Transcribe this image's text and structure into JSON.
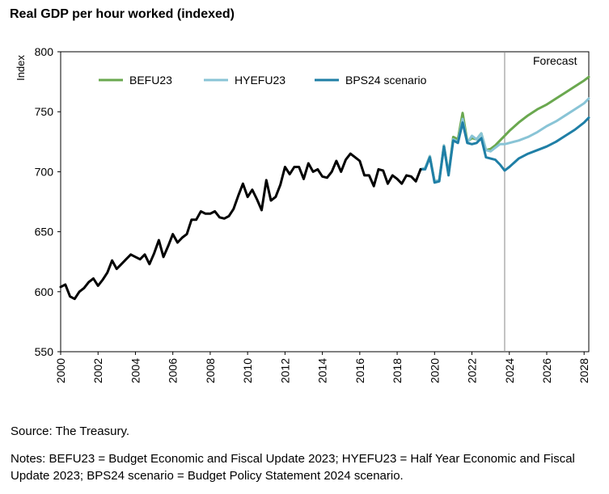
{
  "title": "Real GDP per hour worked (indexed)",
  "source": "Source: The Treasury.",
  "notes": "Notes:  BEFU23 = Budget Economic and Fiscal Update 2023; HYEFU23 = Half Year Economic and Fiscal Update 2023; BPS24 scenario = Budget Policy Statement 2024 scenario.",
  "colors": {
    "history": "#000000",
    "befu": "#6aa84f",
    "hyefu": "#89c4d6",
    "bps": "#1f7fa6",
    "divider": "#888888"
  },
  "chart_data": {
    "type": "line",
    "title": "Real GDP per hour worked (indexed)",
    "ylabel": "Index",
    "xlabel": "",
    "ylim": [
      550,
      800
    ],
    "yticks": [
      550,
      600,
      650,
      700,
      750,
      800
    ],
    "xlim": [
      2000,
      2028.25
    ],
    "xticks": [
      "2000",
      "2002",
      "2004",
      "2006",
      "2008",
      "2010",
      "2012",
      "2014",
      "2016",
      "2018",
      "2020",
      "2022",
      "2024",
      "2026",
      "2028"
    ],
    "forecast_start": 2023.75,
    "forecast_label": "Forecast",
    "legend": [
      "BEFU23",
      "HYEFU23",
      "BPS24 scenario"
    ],
    "history": {
      "x": [
        2000,
        2000.25,
        2000.5,
        2000.75,
        2001,
        2001.25,
        2001.5,
        2001.75,
        2002,
        2002.25,
        2002.5,
        2002.75,
        2003,
        2003.25,
        2003.5,
        2003.75,
        2004,
        2004.25,
        2004.5,
        2004.75,
        2005,
        2005.25,
        2005.5,
        2005.75,
        2006,
        2006.25,
        2006.5,
        2006.75,
        2007,
        2007.25,
        2007.5,
        2007.75,
        2008,
        2008.25,
        2008.5,
        2008.75,
        2009,
        2009.25,
        2009.5,
        2009.75,
        2010,
        2010.25,
        2010.5,
        2010.75,
        2011,
        2011.25,
        2011.5,
        2011.75,
        2012,
        2012.25,
        2012.5,
        2012.75,
        2013,
        2013.25,
        2013.5,
        2013.75,
        2014,
        2014.25,
        2014.5,
        2014.75,
        2015,
        2015.25,
        2015.5,
        2015.75,
        2016,
        2016.25,
        2016.5,
        2016.75,
        2017,
        2017.25,
        2017.5,
        2017.75,
        2018,
        2018.25,
        2018.5,
        2018.75,
        2019,
        2019.25
      ],
      "values": [
        604,
        606,
        596,
        594,
        600,
        603,
        608,
        611,
        605,
        610,
        616,
        626,
        619,
        623,
        627,
        631,
        629,
        627,
        631,
        623,
        632,
        643,
        629,
        638,
        648,
        641,
        645,
        648,
        660,
        660,
        667,
        665,
        665,
        667,
        662,
        661,
        663,
        669,
        680,
        690,
        679,
        685,
        677,
        668,
        693,
        676,
        679,
        689,
        704,
        698,
        704,
        704,
        694,
        707,
        700,
        702,
        696,
        695,
        700,
        709,
        700,
        710,
        715,
        712,
        709,
        697,
        697,
        688,
        702,
        701,
        690,
        697,
        694,
        690,
        697,
        696,
        692,
        702
      ]
    },
    "series": [
      {
        "name": "BEFU23",
        "x": [
          2019.25,
          2019.5,
          2019.75,
          2020,
          2020.25,
          2020.5,
          2020.75,
          2021,
          2021.25,
          2021.5,
          2021.75,
          2022,
          2022.25,
          2022.5,
          2022.75,
          2023,
          2023.25,
          2023.5,
          2023.75,
          2024,
          2024.5,
          2025,
          2025.5,
          2026,
          2026.5,
          2027,
          2027.5,
          2028,
          2028.25
        ],
        "values": [
          702,
          703,
          713,
          692,
          693,
          722,
          698,
          729,
          727,
          749,
          725,
          728,
          727,
          732,
          718,
          719,
          722,
          726,
          730,
          734,
          741,
          747,
          752,
          756,
          761,
          766,
          771,
          776,
          779
        ]
      },
      {
        "name": "HYEFU23",
        "x": [
          2019.25,
          2019.5,
          2019.75,
          2020,
          2020.25,
          2020.5,
          2020.75,
          2021,
          2021.25,
          2021.5,
          2021.75,
          2022,
          2022.25,
          2022.5,
          2022.75,
          2023,
          2023.25,
          2023.5,
          2023.75,
          2024,
          2024.5,
          2025,
          2025.5,
          2026,
          2026.5,
          2027,
          2027.5,
          2028,
          2028.25
        ],
        "values": [
          702,
          703,
          713,
          692,
          693,
          722,
          698,
          727,
          725,
          744,
          724,
          730,
          727,
          732,
          718,
          717,
          720,
          723,
          723,
          724,
          726,
          729,
          733,
          738,
          742,
          747,
          752,
          757,
          761
        ]
      },
      {
        "name": "BPS24 scenario",
        "x": [
          2019.25,
          2019.5,
          2019.75,
          2020,
          2020.25,
          2020.5,
          2020.75,
          2021,
          2021.25,
          2021.5,
          2021.75,
          2022,
          2022.25,
          2022.5,
          2022.75,
          2023,
          2023.25,
          2023.5,
          2023.75,
          2024,
          2024.5,
          2025,
          2025.5,
          2026,
          2026.5,
          2027,
          2027.5,
          2028,
          2028.25
        ],
        "values": [
          702,
          702,
          712,
          691,
          692,
          721,
          697,
          726,
          724,
          741,
          724,
          723,
          724,
          728,
          712,
          711,
          710,
          706,
          701,
          704,
          711,
          715,
          718,
          721,
          725,
          730,
          735,
          741,
          745
        ]
      }
    ]
  }
}
